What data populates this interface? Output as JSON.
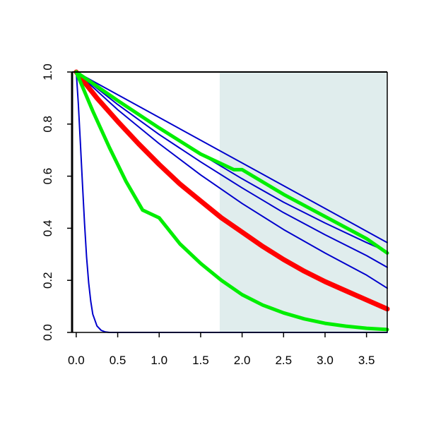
{
  "chart_data": {
    "type": "line",
    "title": "",
    "xlabel": "",
    "ylabel": "",
    "xlim": [
      -0.05,
      3.75
    ],
    "ylim": [
      0.0,
      1.0
    ],
    "grid": false,
    "shaded_region": {
      "x": [
        1.73,
        3.75
      ],
      "color": "#e0eded"
    },
    "x_ticks": [
      {
        "value": 0.0,
        "label": "0.0"
      },
      {
        "value": 0.5,
        "label": "0.5"
      },
      {
        "value": 1.0,
        "label": "1.0"
      },
      {
        "value": 1.5,
        "label": "1.5"
      },
      {
        "value": 2.0,
        "label": "2.0"
      },
      {
        "value": 2.5,
        "label": "2.5"
      },
      {
        "value": 3.0,
        "label": "3.0"
      },
      {
        "value": 3.5,
        "label": "3.5"
      }
    ],
    "y_ticks": [
      {
        "value": 0.0,
        "label": "0.0"
      },
      {
        "value": 0.2,
        "label": "0.2"
      },
      {
        "value": 0.4,
        "label": "0.4"
      },
      {
        "value": 0.6,
        "label": "0.6"
      },
      {
        "value": 0.8,
        "label": "0.8"
      },
      {
        "value": 1.0,
        "label": "1.0"
      }
    ],
    "series": [
      {
        "color": "#0000cc",
        "width": 2,
        "x": [
          0.0,
          0.025,
          0.05,
          0.075,
          0.1,
          0.125,
          0.15,
          0.175,
          0.2,
          0.25,
          0.3,
          0.35,
          0.4,
          0.5,
          1.0,
          2.0,
          3.0,
          3.75
        ],
        "y": [
          1.0,
          0.88,
          0.73,
          0.57,
          0.42,
          0.29,
          0.19,
          0.12,
          0.07,
          0.025,
          0.008,
          0.002,
          0.0,
          0.0,
          0.0,
          0.0,
          0.0,
          0.0
        ]
      },
      {
        "color": "#0000cc",
        "width": 2,
        "x": [
          0.0,
          0.5,
          1.0,
          1.5,
          2.0,
          2.5,
          3.0,
          3.5,
          3.75
        ],
        "y": [
          1.0,
          0.855,
          0.725,
          0.605,
          0.495,
          0.395,
          0.305,
          0.22,
          0.17
        ]
      },
      {
        "color": "#0000cc",
        "width": 2,
        "x": [
          0.0,
          0.5,
          1.0,
          1.5,
          2.0,
          2.5,
          3.0,
          3.5,
          3.75
        ],
        "y": [
          1.0,
          0.875,
          0.76,
          0.655,
          0.555,
          0.46,
          0.375,
          0.295,
          0.25
        ]
      },
      {
        "color": "#0000cc",
        "width": 2,
        "x": [
          0.0,
          0.5,
          1.0,
          1.5,
          2.0,
          2.5,
          3.0,
          3.5,
          3.75
        ],
        "y": [
          1.0,
          0.89,
          0.785,
          0.685,
          0.59,
          0.5,
          0.42,
          0.345,
          0.31
        ]
      },
      {
        "color": "#0000cc",
        "width": 2,
        "x": [
          0.0,
          3.75
        ],
        "y": [
          1.0,
          0.345
        ]
      },
      {
        "color": "#ff0000",
        "width": 7,
        "x": [
          0.0,
          0.25,
          0.5,
          0.75,
          1.0,
          1.25,
          1.5,
          1.75,
          2.0,
          2.25,
          2.5,
          2.75,
          3.0,
          3.25,
          3.5,
          3.75
        ],
        "y": [
          1.0,
          0.9,
          0.81,
          0.725,
          0.645,
          0.57,
          0.505,
          0.44,
          0.385,
          0.33,
          0.28,
          0.235,
          0.195,
          0.16,
          0.125,
          0.09
        ]
      },
      {
        "color": "#00ee00",
        "width": 5,
        "x": [
          0.0,
          0.2,
          0.4,
          0.6,
          0.8,
          1.0,
          1.25,
          1.5,
          1.75,
          2.0,
          2.25,
          2.5,
          2.75,
          3.0,
          3.25,
          3.5,
          3.75
        ],
        "y": [
          1.0,
          0.85,
          0.71,
          0.58,
          0.47,
          0.44,
          0.34,
          0.265,
          0.2,
          0.145,
          0.105,
          0.075,
          0.052,
          0.035,
          0.024,
          0.016,
          0.011
        ]
      },
      {
        "color": "#00ee00",
        "width": 5,
        "x": [
          0.0,
          0.5,
          1.0,
          1.5,
          1.9,
          2.0,
          2.5,
          3.0,
          3.5,
          3.75
        ],
        "y": [
          1.0,
          0.89,
          0.785,
          0.685,
          0.625,
          0.625,
          0.53,
          0.445,
          0.36,
          0.305
        ]
      }
    ]
  }
}
